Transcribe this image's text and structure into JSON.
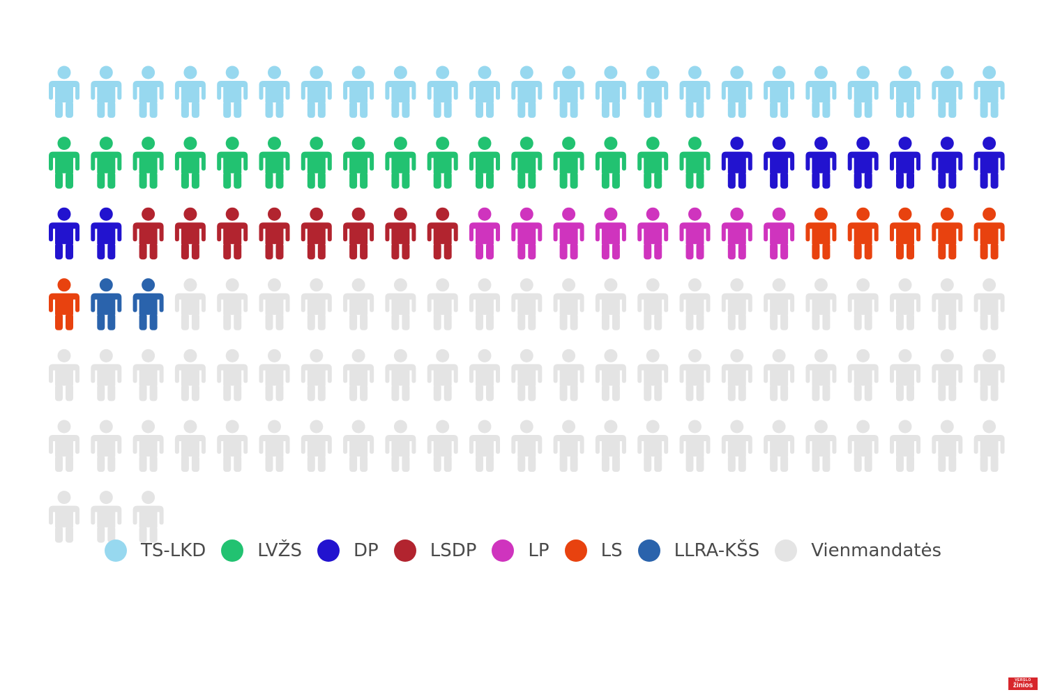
{
  "chart_data": {
    "type": "pictogram",
    "unit": "1 seat",
    "total": 141,
    "categories": [
      "TS-LKD",
      "LVŽS",
      "DP",
      "LSDP",
      "LP",
      "LS",
      "LLRA-KŠS",
      "Vienmandatės"
    ],
    "values": [
      23,
      16,
      9,
      8,
      8,
      6,
      2,
      69
    ],
    "colors": [
      "#97d8ef",
      "#22c271",
      "#2213cf",
      "#b2242f",
      "#cf34be",
      "#e8420f",
      "#2a63ac",
      "#e4e4e4"
    ],
    "legend_position": "bottom-center"
  },
  "logo": {
    "line1": "VERSLO",
    "line2": "žinios"
  }
}
